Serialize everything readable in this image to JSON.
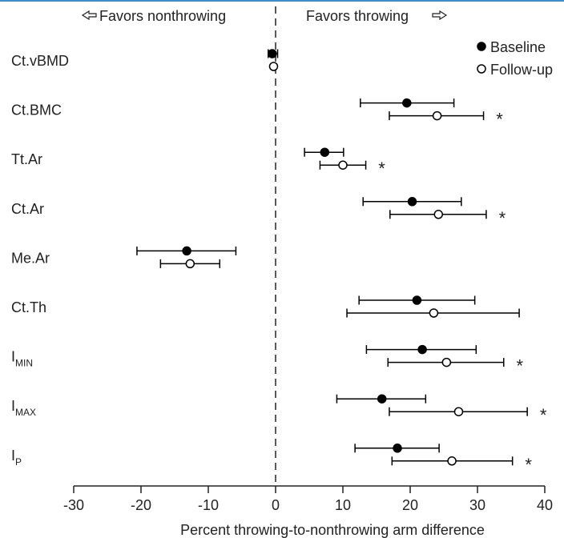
{
  "chart_data": {
    "type": "scatter",
    "subtype": "forest-plot",
    "title": "",
    "xlabel": "Percent throwing-to-nonthrowing arm difference",
    "ylabel": "",
    "xlim": [
      -30,
      40
    ],
    "xticks": [
      -30,
      -20,
      -10,
      0,
      10,
      20,
      30,
      40
    ],
    "grid": false,
    "reference_line": 0,
    "direction_labels": {
      "left": "Favors nonthrowing",
      "right": "Favors throwing"
    },
    "legend": {
      "placement": "top-right",
      "entries": [
        {
          "name": "Baseline",
          "marker": "filled-circle"
        },
        {
          "name": "Follow-up",
          "marker": "open-circle"
        }
      ]
    },
    "significance_marker": "*",
    "categories": [
      {
        "label": "Ct.vBMD",
        "base": "Ct.vBMD",
        "sub": ""
      },
      {
        "label": "Ct.BMC",
        "base": "Ct.BMC",
        "sub": ""
      },
      {
        "label": "Tt.Ar",
        "base": "Tt.Ar",
        "sub": ""
      },
      {
        "label": "Ct.Ar",
        "base": "Ct.Ar",
        "sub": ""
      },
      {
        "label": "Me.Ar",
        "base": "Me.Ar",
        "sub": ""
      },
      {
        "label": "Ct.Th",
        "base": "Ct.Th",
        "sub": ""
      },
      {
        "label": "IMIN",
        "base": "I",
        "sub": "MIN"
      },
      {
        "label": "IMAX",
        "base": "I",
        "sub": "MAX"
      },
      {
        "label": "IP",
        "base": "I",
        "sub": "P"
      }
    ],
    "series": [
      {
        "name": "Baseline",
        "values": [
          -0.5,
          19.5,
          7.3,
          20.3,
          -13.2,
          21.0,
          21.8,
          15.8,
          18.1
        ],
        "lower": [
          -1.1,
          12.6,
          4.3,
          13.0,
          -20.6,
          12.4,
          13.5,
          9.1,
          11.8
        ],
        "upper": [
          0.3,
          26.5,
          10.1,
          27.6,
          -5.9,
          29.6,
          29.8,
          22.3,
          24.3
        ]
      },
      {
        "name": "Follow-up",
        "values": [
          -0.3,
          24.0,
          10.0,
          24.2,
          -12.7,
          23.5,
          25.4,
          27.2,
          26.2
        ],
        "lower": [
          -0.3,
          16.9,
          6.6,
          17.0,
          -17.1,
          10.6,
          16.7,
          16.9,
          17.3
        ],
        "upper": [
          -0.3,
          30.9,
          13.4,
          31.3,
          -8.3,
          36.2,
          33.9,
          37.4,
          35.2
        ]
      }
    ],
    "significant": [
      false,
      true,
      true,
      true,
      false,
      false,
      true,
      true,
      true
    ]
  }
}
